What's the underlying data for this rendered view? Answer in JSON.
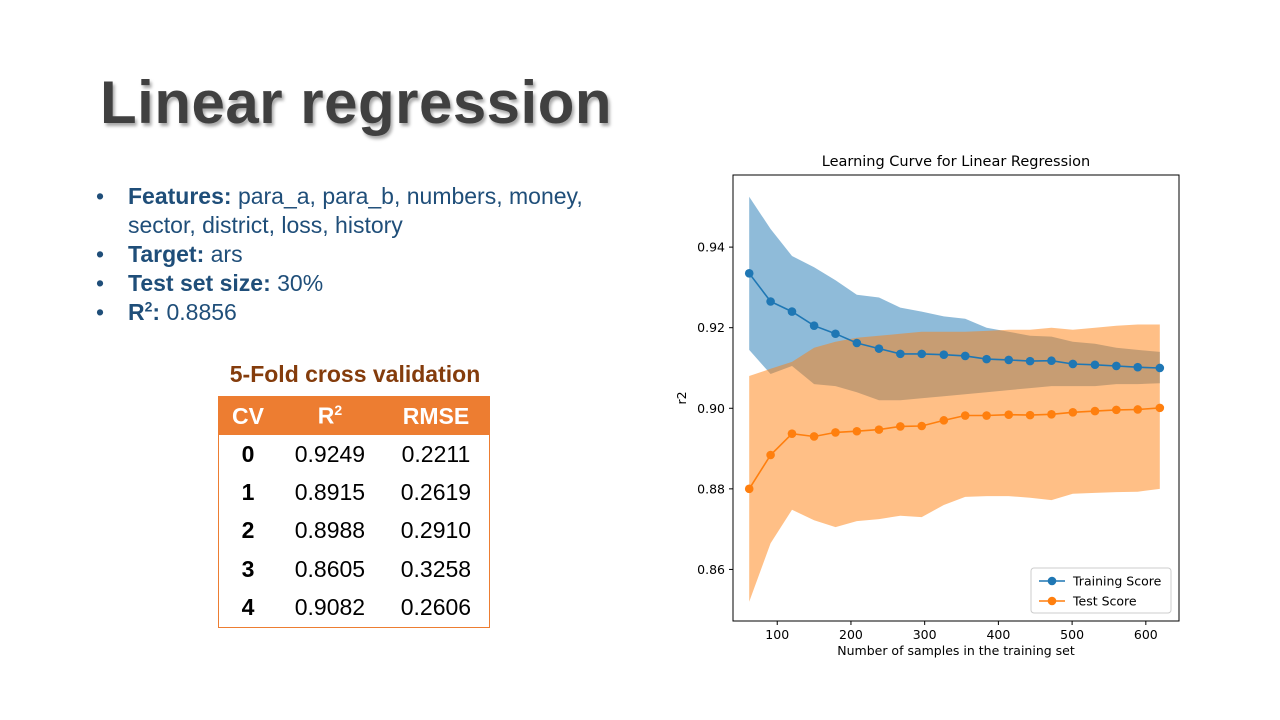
{
  "slide": {
    "title": "Linear regression"
  },
  "bullets": [
    {
      "label": "Features:",
      "value": "para_a, para_b, numbers, money, sector, district, loss, history"
    },
    {
      "label": "Target:",
      "value": "ars"
    },
    {
      "label": "Test set size:",
      "value": "30%"
    },
    {
      "label_base": "R",
      "label_sup": "2",
      "label_suffix": ":",
      "value": "0.8856"
    }
  ],
  "cv_table": {
    "caption": "5-Fold cross validation",
    "headers": {
      "cv": "CV",
      "r2_base": "R",
      "r2_sup": "2",
      "rmse": "RMSE"
    },
    "rows": [
      {
        "cv": "0",
        "r2": "0.9249",
        "rmse": "0.2211"
      },
      {
        "cv": "1",
        "r2": "0.8915",
        "rmse": "0.2619"
      },
      {
        "cv": "2",
        "r2": "0.8988",
        "rmse": "0.2910"
      },
      {
        "cv": "3",
        "r2": "0.8605",
        "rmse": "0.3258"
      },
      {
        "cv": "4",
        "r2": "0.9082",
        "rmse": "0.2606"
      }
    ],
    "header_color": "#ED7D31"
  },
  "chart_data": {
    "type": "line",
    "title": "Learning Curve for Linear Regression",
    "xlabel": "Number of samples in the training set",
    "ylabel": "r2",
    "xlim": [
      40,
      645
    ],
    "ylim": [
      0.8472,
      0.9579
    ],
    "xticks": [
      100,
      200,
      300,
      400,
      500,
      600
    ],
    "yticks": [
      0.86,
      0.88,
      0.9,
      0.92,
      0.94
    ],
    "ytick_labels": [
      "0.86",
      "0.88",
      "0.90",
      "0.92",
      "0.94"
    ],
    "grid": false,
    "legend": "lower-right",
    "x": [
      62,
      91,
      120,
      150,
      179,
      208,
      238,
      267,
      296,
      326,
      355,
      384,
      414,
      443,
      472,
      501,
      531,
      560,
      589,
      619
    ],
    "series": [
      {
        "name": "Training Score",
        "color": "#1F77B4",
        "values": [
          0.9335,
          0.9265,
          0.924,
          0.9205,
          0.9185,
          0.9162,
          0.9148,
          0.9135,
          0.9135,
          0.9133,
          0.913,
          0.9122,
          0.912,
          0.9117,
          0.9118,
          0.911,
          0.9108,
          0.9105,
          0.9102,
          0.91
        ],
        "upper": [
          0.9525,
          0.9445,
          0.9378,
          0.935,
          0.9318,
          0.9282,
          0.9275,
          0.925,
          0.924,
          0.9228,
          0.9222,
          0.92,
          0.919,
          0.918,
          0.9178,
          0.9165,
          0.916,
          0.915,
          0.9145,
          0.914
        ],
        "lower": [
          0.9145,
          0.9085,
          0.9105,
          0.906,
          0.9055,
          0.904,
          0.902,
          0.902,
          0.9025,
          0.903,
          0.9035,
          0.904,
          0.9045,
          0.905,
          0.9055,
          0.9055,
          0.9055,
          0.906,
          0.906,
          0.9062
        ]
      },
      {
        "name": "Test Score",
        "color": "#FF7F0E",
        "values": [
          0.88,
          0.8884,
          0.8937,
          0.893,
          0.894,
          0.8943,
          0.8947,
          0.8955,
          0.8956,
          0.897,
          0.8982,
          0.8982,
          0.8984,
          0.8983,
          0.8985,
          0.899,
          0.8993,
          0.8996,
          0.8997,
          0.9001
        ],
        "upper": [
          0.908,
          0.9098,
          0.9115,
          0.915,
          0.9165,
          0.9175,
          0.918,
          0.9185,
          0.919,
          0.919,
          0.919,
          0.9192,
          0.9195,
          0.9195,
          0.92,
          0.9195,
          0.92,
          0.9205,
          0.9208,
          0.9208
        ],
        "lower": [
          0.852,
          0.8665,
          0.8748,
          0.8722,
          0.8705,
          0.872,
          0.8725,
          0.8733,
          0.873,
          0.876,
          0.878,
          0.8782,
          0.8782,
          0.8778,
          0.8772,
          0.8788,
          0.879,
          0.8792,
          0.8793,
          0.88
        ]
      }
    ]
  }
}
